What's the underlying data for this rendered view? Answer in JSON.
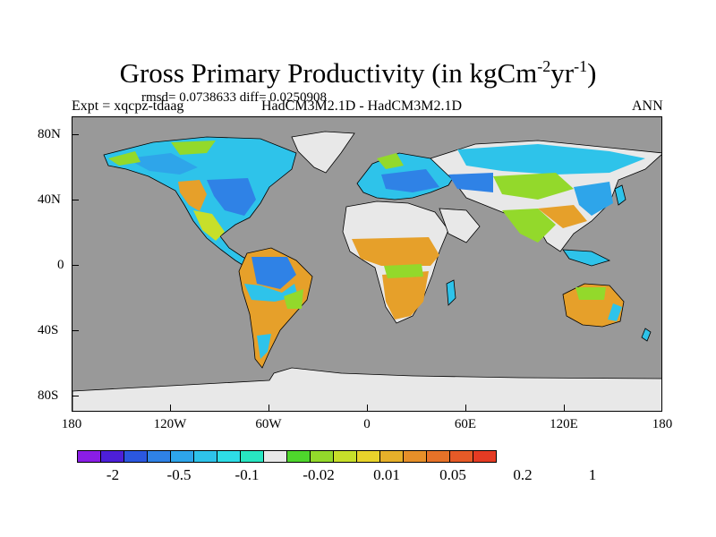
{
  "title": {
    "main": "Gross Primary Productivity (in kgCm",
    "exp1": "-2",
    "mid": "yr",
    "exp2": "-1",
    "end": ")"
  },
  "stats": "rmsd= 0.0738633 diff= 0.0250908",
  "labels": {
    "left": "Expt = xqcpz-tdaag",
    "center": "HadCM3M2.1D - HadCM3M2.1D",
    "right": "ANN"
  },
  "axes": {
    "y": [
      "80N",
      "40N",
      "0",
      "40S",
      "80S"
    ],
    "x": [
      "180",
      "120W",
      "60W",
      "0",
      "60E",
      "120E",
      "180"
    ]
  },
  "colorbar": {
    "colors": [
      "#8a1de6",
      "#4d1fd9",
      "#2b57e0",
      "#2f82e6",
      "#2ea5ea",
      "#2ec3ea",
      "#2edde6",
      "#28e6c2",
      "#e8e8e8",
      "#4ed62c",
      "#93d92b",
      "#c7df2a",
      "#e8d32b",
      "#e6b02a",
      "#e68f29",
      "#e67228",
      "#e65a27",
      "#e53b23"
    ],
    "labels": [
      "-2",
      "-0.5",
      "-0.1",
      "-0.02",
      "0.01",
      "0.05",
      "0.2",
      "1"
    ]
  },
  "map_colors": {
    "ocean": "#999999",
    "land_neutral": "#e8e8e8",
    "cyan": "#2ec3ea",
    "blue": "#2f82e6",
    "green": "#93d92b",
    "orange": "#e6a02a"
  }
}
